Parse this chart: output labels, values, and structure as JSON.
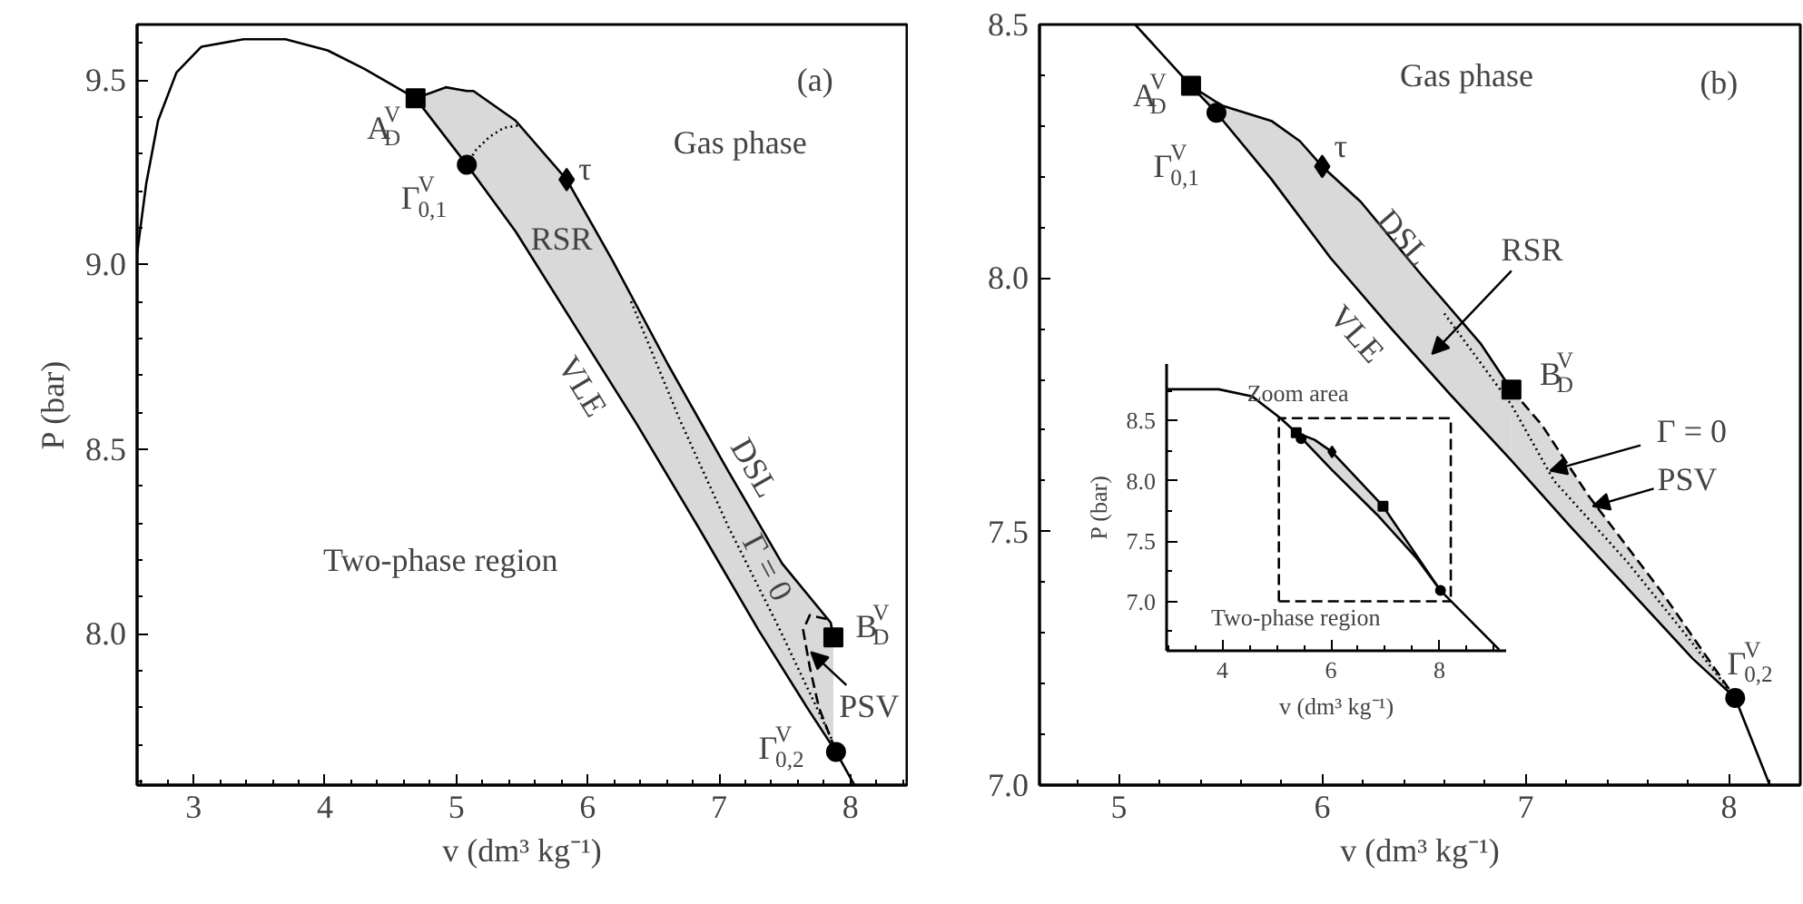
{
  "chart_data": [
    {
      "type": "line",
      "xlabel": "v (dm³ kg⁻¹)",
      "ylabel": "P (bar)",
      "xlim": [
        2.57,
        8.43
      ],
      "ylim": [
        7.59,
        9.65
      ],
      "xticks": [
        {
          "value": 2.6,
          "label": null
        },
        {
          "value": 2.8,
          "label": null
        },
        3,
        {
          "value": 3.2,
          "label": null
        },
        {
          "value": 3.4,
          "label": null
        },
        {
          "value": 3.6,
          "label": null
        },
        {
          "value": 3.8,
          "label": null
        },
        4,
        {
          "value": 4.2,
          "label": null
        },
        {
          "value": 4.4,
          "label": null
        },
        {
          "value": 4.6,
          "label": null
        },
        {
          "value": 4.8,
          "label": null
        },
        5,
        {
          "value": 5.2,
          "label": null
        },
        {
          "value": 5.4,
          "label": null
        },
        {
          "value": 5.6,
          "label": null
        },
        {
          "value": 5.8,
          "label": null
        },
        6,
        {
          "value": 6.2,
          "label": null
        },
        {
          "value": 6.4,
          "label": null
        },
        {
          "value": 6.6,
          "label": null
        },
        {
          "value": 6.8,
          "label": null
        },
        7,
        {
          "value": 7.2,
          "label": null
        },
        {
          "value": 7.4,
          "label": null
        },
        {
          "value": 7.6,
          "label": null
        },
        {
          "value": 7.8,
          "label": null
        },
        8,
        {
          "value": 8.2,
          "label": null
        },
        {
          "value": 8.4,
          "label": null
        }
      ],
      "yticks": [
        {
          "value": 7.6,
          "label": null
        },
        {
          "value": 7.7,
          "label": null
        },
        {
          "value": 7.8,
          "label": null
        },
        {
          "value": 7.9,
          "label": null
        },
        {
          "value": 8.0,
          "label": "8.0"
        },
        {
          "value": 8.1,
          "label": null
        },
        {
          "value": 8.2,
          "label": null
        },
        {
          "value": 8.3,
          "label": null
        },
        {
          "value": 8.4,
          "label": null
        },
        8.5,
        {
          "value": 8.6,
          "label": null
        },
        {
          "value": 8.7,
          "label": null
        },
        {
          "value": 8.8,
          "label": null
        },
        {
          "value": 8.9,
          "label": null
        },
        {
          "value": 9.0,
          "label": "9.0"
        },
        {
          "value": 9.1,
          "label": null
        },
        {
          "value": 9.2,
          "label": null
        },
        {
          "value": 9.3,
          "label": null
        },
        {
          "value": 9.4,
          "label": null
        },
        9.5,
        {
          "value": 9.6,
          "label": null
        }
      ],
      "series": [
        {
          "color": "#000000",
          "x": [
            2.57,
            2.64,
            2.73,
            2.87,
            3.06,
            3.38,
            3.7,
            4.02,
            4.3,
            4.69,
            5.08,
            5.45,
            5.91,
            6.37,
            6.84,
            7.3,
            7.67,
            7.89,
            8.03
          ],
          "values": [
            9.03,
            9.22,
            9.39,
            9.52,
            9.59,
            9.61,
            9.61,
            9.58,
            9.53,
            9.45,
            9.27,
            9.09,
            8.83,
            8.57,
            8.29,
            8.01,
            7.8,
            7.68,
            7.59
          ]
        },
        {
          "color": "#000000",
          "x": [
            4.69,
            4.92,
            5.08,
            5.13,
            5.45,
            5.84,
            6.19,
            6.61,
            7.07,
            7.48,
            7.85,
            7.87
          ],
          "values": [
            9.45,
            9.48,
            9.47,
            9.47,
            9.39,
            9.23,
            9.01,
            8.73,
            8.44,
            8.19,
            8.03,
            7.99
          ],
          "upper": [
            9.45,
            9.48,
            9.47,
            9.47,
            9.39,
            9.23,
            9.01,
            8.73,
            8.44,
            8.19,
            8.03,
            7.99
          ],
          "lower": [
            9.45,
            9.34,
            9.27,
            9.245,
            9.09,
            8.87,
            8.67,
            8.43,
            8.15,
            7.91,
            7.7,
            7.69
          ]
        },
        {
          "color": "#000000",
          "line_style": "dotted",
          "x": [
            6.33,
            6.7,
            7.07,
            7.45,
            7.85,
            7.89
          ],
          "values": [
            8.9,
            8.58,
            8.29,
            8.02,
            7.72,
            7.68
          ]
        },
        {
          "color": "#000000",
          "line_style": "dotted",
          "x": [
            5.08,
            5.15,
            5.25,
            5.36,
            5.48
          ],
          "values": [
            9.27,
            9.31,
            9.345,
            9.37,
            9.377
          ]
        },
        {
          "color": "#000000",
          "line_style": "dashed",
          "x": [
            7.82,
            7.69,
            7.64,
            7.69,
            7.76,
            7.89
          ],
          "values": [
            8.04,
            8.05,
            8.01,
            7.91,
            7.8,
            7.68
          ]
        },
        {
          "type": "scatter",
          "color": "#000000",
          "marker": "square",
          "x": [
            4.69,
            7.87
          ],
          "values": [
            9.45,
            7.99
          ]
        },
        {
          "type": "scatter",
          "color": "#000000",
          "marker": "circle",
          "x": [
            5.08,
            7.89
          ],
          "values": [
            9.27,
            7.68
          ]
        },
        {
          "type": "scatter",
          "color": "#000000",
          "marker": "diamond",
          "x": [
            5.84
          ],
          "values": [
            9.23
          ]
        }
      ],
      "annotations": [
        "(a)",
        "Gas phase",
        "RSR",
        "VLE",
        "DSL",
        "Γ = 0",
        "Two-phase region",
        {
          "text": "PSV",
          "x": 7.7,
          "y": 7.95
        },
        "A$_{D}$$^{V}$",
        "Γ$_{0,1}$$^{V}$",
        "τ",
        "B$_{D}$$^{V}$",
        "Γ$_{0,2}$$^{V}$"
      ]
    },
    {
      "type": "line",
      "xlabel": "v (dm³ kg⁻¹)",
      "xlim": [
        4.61,
        8.35
      ],
      "ylim": [
        7.0,
        8.5
      ],
      "xticks": [
        {
          "value": 4.8,
          "label": null
        },
        5,
        {
          "value": 5.2,
          "label": null
        },
        {
          "value": 5.4,
          "label": null
        },
        {
          "value": 5.6,
          "label": null
        },
        {
          "value": 5.8,
          "label": null
        },
        6,
        {
          "value": 6.2,
          "label": null
        },
        {
          "value": 6.4,
          "label": null
        },
        {
          "value": 6.6,
          "label": null
        },
        {
          "value": 6.8,
          "label": null
        },
        7,
        {
          "value": 7.2,
          "label": null
        },
        {
          "value": 7.4,
          "label": null
        },
        {
          "value": 7.6,
          "label": null
        },
        {
          "value": 7.8,
          "label": null
        },
        8,
        {
          "value": 8.2,
          "label": null
        }
      ],
      "yticks": [
        {
          "value": 7.0,
          "label": "7.0"
        },
        {
          "value": 7.1,
          "label": null
        },
        {
          "value": 7.2,
          "label": null
        },
        {
          "value": 7.3,
          "label": null
        },
        {
          "value": 7.4,
          "label": null
        },
        7.5,
        {
          "value": 7.6,
          "label": null
        },
        {
          "value": 7.7,
          "label": null
        },
        {
          "value": 7.8,
          "label": null
        },
        {
          "value": 7.9,
          "label": null
        },
        {
          "value": 8.0,
          "label": "8.0"
        },
        {
          "value": 8.1,
          "label": null
        },
        {
          "value": 8.2,
          "label": null
        },
        {
          "value": 8.3,
          "label": null
        },
        {
          "value": 8.4,
          "label": null
        },
        8.5
      ],
      "series": [
        {
          "color": "#000000",
          "x": [
            5.08,
            5.355,
            5.48,
            5.75,
            6.04,
            6.34,
            6.63,
            6.93,
            7.22,
            7.52,
            7.82,
            8.03,
            8.2
          ],
          "values": [
            8.5,
            8.379,
            8.326,
            8.195,
            8.04,
            7.9,
            7.77,
            7.64,
            7.51,
            7.38,
            7.25,
            7.172,
            7.0
          ]
        },
        {
          "color": "#000000",
          "x": [
            5.355,
            5.48,
            5.51,
            5.75,
            5.89,
            6.0,
            6.19,
            6.49,
            6.78,
            6.93
          ],
          "values": [
            8.379,
            8.347,
            8.34,
            8.31,
            8.27,
            8.22,
            8.15,
            8.005,
            7.87,
            7.78
          ],
          "upper": [
            8.379,
            8.347,
            8.34,
            8.31,
            8.27,
            8.22,
            8.15,
            8.005,
            7.87,
            7.78
          ],
          "lower": [
            8.379,
            8.326,
            8.31,
            8.195,
            8.12,
            8.06,
            7.97,
            7.83,
            7.705,
            7.64
          ]
        },
        {
          "color": "#000000",
          "line_style": "dashed",
          "x": [
            6.93,
            7.08,
            7.31,
            7.67,
            8.03
          ],
          "values": [
            7.78,
            7.71,
            7.57,
            7.38,
            7.172
          ],
          "upper": [
            7.78,
            7.71,
            7.57,
            7.38,
            7.172
          ],
          "lower": [
            7.64,
            7.573,
            7.47,
            7.315,
            7.172
          ]
        },
        {
          "color": "#000000",
          "line_style": "dotted",
          "x": [
            6.6,
            6.93,
            7.14,
            7.5,
            7.8,
            8.03
          ],
          "values": [
            7.93,
            7.75,
            7.6,
            7.44,
            7.29,
            7.172
          ]
        },
        {
          "type": "scatter",
          "color": "#000000",
          "marker": "square",
          "x": [
            5.355,
            6.93
          ],
          "values": [
            8.379,
            7.78
          ]
        },
        {
          "type": "scatter",
          "color": "#000000",
          "marker": "circle",
          "x": [
            5.48,
            8.03
          ],
          "values": [
            8.326,
            7.172
          ]
        },
        {
          "type": "scatter",
          "color": "#000000",
          "marker": "diamond",
          "x": [
            6.0
          ],
          "values": [
            8.22
          ]
        }
      ],
      "annotations": [
        "(b)",
        "Gas phase",
        "A$_{D}$$^{V}$",
        "Γ$_{0,1}$$^{V}$",
        "τ",
        "DSL",
        "VLE",
        "RSR",
        "B$_{D}$$^{V}$",
        {
          "text": "Γ = 0",
          "x": 7.12,
          "y": 7.62
        },
        {
          "text": "PSV",
          "x": 7.33,
          "y": 7.55
        },
        "Γ$_{0,2}$$^{V}$"
      ]
    },
    {
      "type": "line",
      "xlabel": "v (dm³ kg⁻¹)",
      "ylabel": "P (bar)",
      "xlim": [
        2.97,
        9.23
      ],
      "ylim": [
        6.59,
        8.97
      ],
      "xticks": [
        {
          "value": 3.0,
          "label": null
        },
        {
          "value": 3.5,
          "label": null
        },
        4,
        {
          "value": 4.5,
          "label": null
        },
        {
          "value": 5.0,
          "label": null
        },
        {
          "value": 5.5,
          "label": null
        },
        6,
        {
          "value": 6.5,
          "label": null
        },
        {
          "value": 7.0,
          "label": null
        },
        {
          "value": 7.5,
          "label": null
        },
        8,
        {
          "value": 8.5,
          "label": null
        },
        {
          "value": 9.0,
          "label": null
        }
      ],
      "yticks": [
        {
          "value": 6.75,
          "label": null
        },
        {
          "value": 7.0,
          "label": "7.0"
        },
        {
          "value": 7.25,
          "label": null
        },
        7.5,
        {
          "value": 7.75,
          "label": null
        },
        {
          "value": 8.0,
          "label": "8.0"
        },
        {
          "value": 8.25,
          "label": null
        },
        8.5,
        {
          "value": 8.75,
          "label": null
        }
      ],
      "series": [
        {
          "color": "#000000",
          "x": [
            2.99,
            3.93,
            4.55,
            5.07,
            5.36,
            6.02,
            6.85,
            7.58,
            8.02,
            9.1
          ],
          "values": [
            8.76,
            8.76,
            8.7,
            8.52,
            8.4,
            8.09,
            7.72,
            7.36,
            7.09,
            6.6
          ]
        },
        {
          "color": "#000000",
          "x": [
            5.36,
            5.7,
            6.02,
            6.96,
            8.02
          ],
          "values": [
            8.4,
            8.34,
            8.24,
            7.79,
            7.09
          ],
          "upper": [
            8.4,
            8.34,
            8.24,
            7.79,
            7.09
          ],
          "lower": [
            8.4,
            8.24,
            8.09,
            7.67,
            7.09
          ]
        },
        {
          "color": "#000000",
          "line_style": "dashed",
          "x": [
            5.04,
            5.04,
            8.21,
            8.21
          ],
          "values": [
            7.0,
            8.52,
            8.52,
            7.0
          ]
        },
        {
          "color": "#000000",
          "line_style": "dashed",
          "x": [
            5.04,
            8.21
          ],
          "values": [
            7.0,
            7.0
          ]
        },
        {
          "type": "scatter",
          "color": "#000000",
          "marker": "square",
          "x": [
            5.36,
            6.96
          ],
          "values": [
            8.4,
            7.79
          ]
        },
        {
          "type": "scatter",
          "color": "#000000",
          "marker": "circle",
          "x": [
            5.45,
            8.02
          ],
          "values": [
            8.35,
            7.09
          ]
        },
        {
          "type": "scatter",
          "color": "#000000",
          "marker": "diamond",
          "x": [
            6.02
          ],
          "values": [
            8.24
          ]
        }
      ],
      "annotations": [
        "Zoom area",
        "Two-phase region"
      ]
    }
  ]
}
